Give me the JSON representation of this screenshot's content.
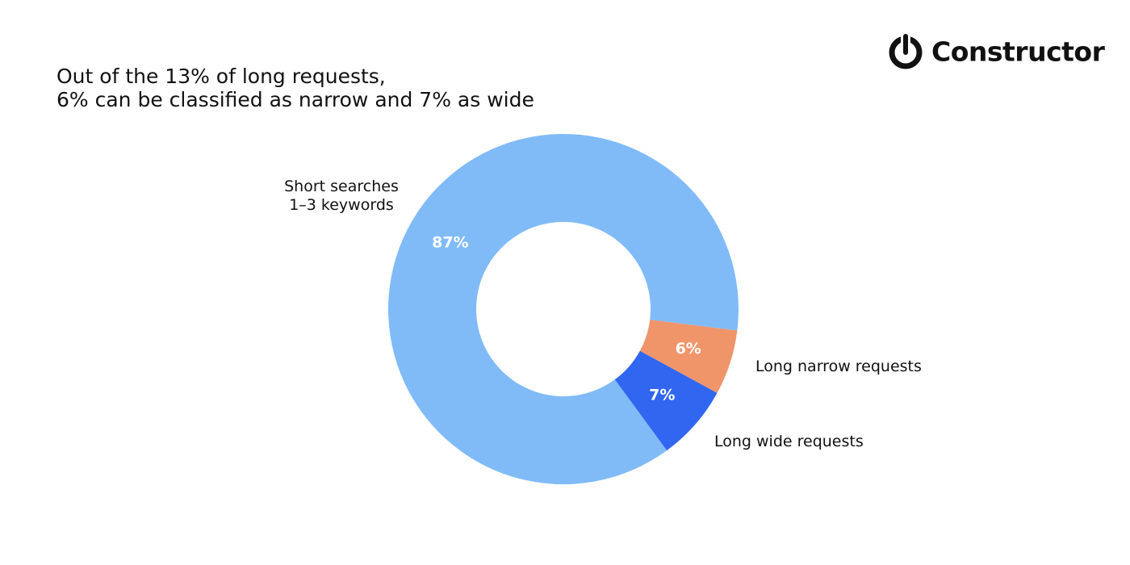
{
  "brand": "Constructor",
  "chart_data": {
    "type": "donut",
    "title": "Out of the 13% of long requests,\n6% can be classified as narrow and 7% as wide",
    "categories": [
      "Short searches\n1–3 keywords",
      "Long narrow requests",
      "Long wide requests"
    ],
    "values": [
      87,
      6,
      7
    ],
    "value_labels": [
      "87%",
      "6%",
      "7%"
    ],
    "colors": [
      "#80bbf8",
      "#f0956a",
      "#3166f0"
    ]
  }
}
